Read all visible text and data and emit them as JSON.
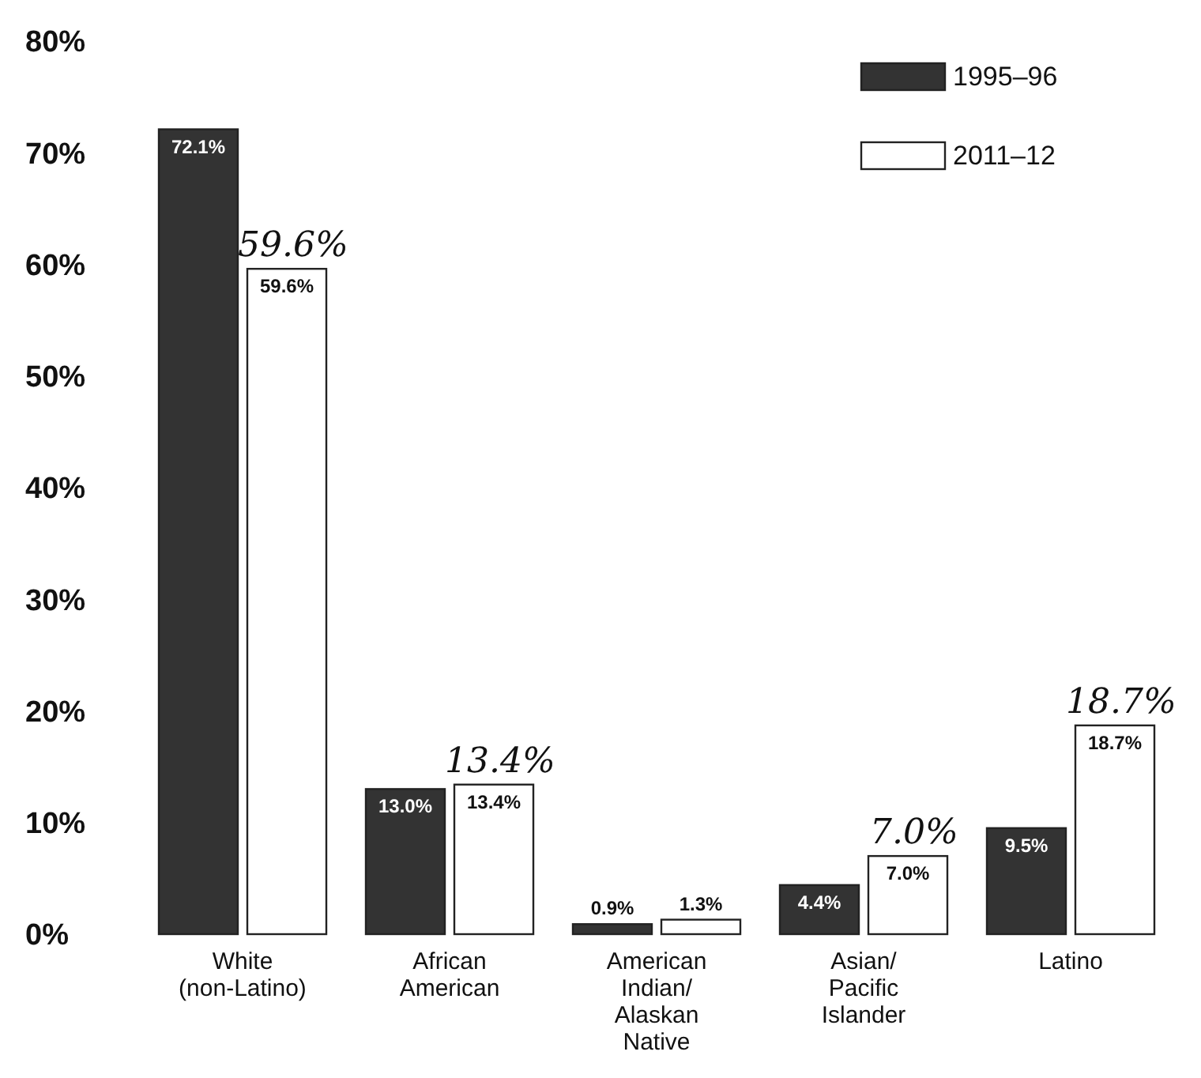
{
  "chart_data": {
    "type": "bar",
    "categories": [
      "White\n(non-Latino)",
      "African\nAmerican",
      "American\nIndian/\nAlaskan\nNative",
      "Asian/\nPacific\nIslander",
      "Latino"
    ],
    "series": [
      {
        "name": "1995–96",
        "color": "#333333",
        "values": [
          72.1,
          13.0,
          0.9,
          4.4,
          9.5
        ]
      },
      {
        "name": "2011–12",
        "color": "#ffffff",
        "values": [
          59.6,
          13.4,
          1.3,
          7.0,
          18.7
        ]
      }
    ],
    "ylim": [
      0,
      80
    ],
    "yticks": [
      {
        "value": 0,
        "label": "0%"
      },
      {
        "value": 10,
        "label": "10%"
      },
      {
        "value": 20,
        "label": "20%"
      },
      {
        "value": 30,
        "label": "30%"
      },
      {
        "value": 40,
        "label": "40%"
      },
      {
        "value": 50,
        "label": "50%"
      },
      {
        "value": 60,
        "label": "60%"
      },
      {
        "value": 70,
        "label": "70%"
      },
      {
        "value": 80,
        "label": "80%"
      }
    ],
    "value_labels": [
      [
        "72.1%",
        "13.0%",
        "0.9%",
        "4.4%",
        "9.5%"
      ],
      [
        "59.6%",
        "13.4%",
        "1.3%",
        "7.0%",
        "18.7%"
      ]
    ],
    "annotations": [
      {
        "text": "59.6%",
        "x": "White\n(non-Latino)",
        "y": 59.6
      },
      {
        "text": "13.4%",
        "x": "African\nAmerican",
        "y": 13.4
      },
      {
        "text": "7.0%",
        "x": "Asian/\nPacific\nIslander",
        "y": 7.0
      },
      {
        "text": "18.7%",
        "x": "Latino",
        "y": 18.7
      }
    ],
    "legend": "top right",
    "grid": false
  }
}
